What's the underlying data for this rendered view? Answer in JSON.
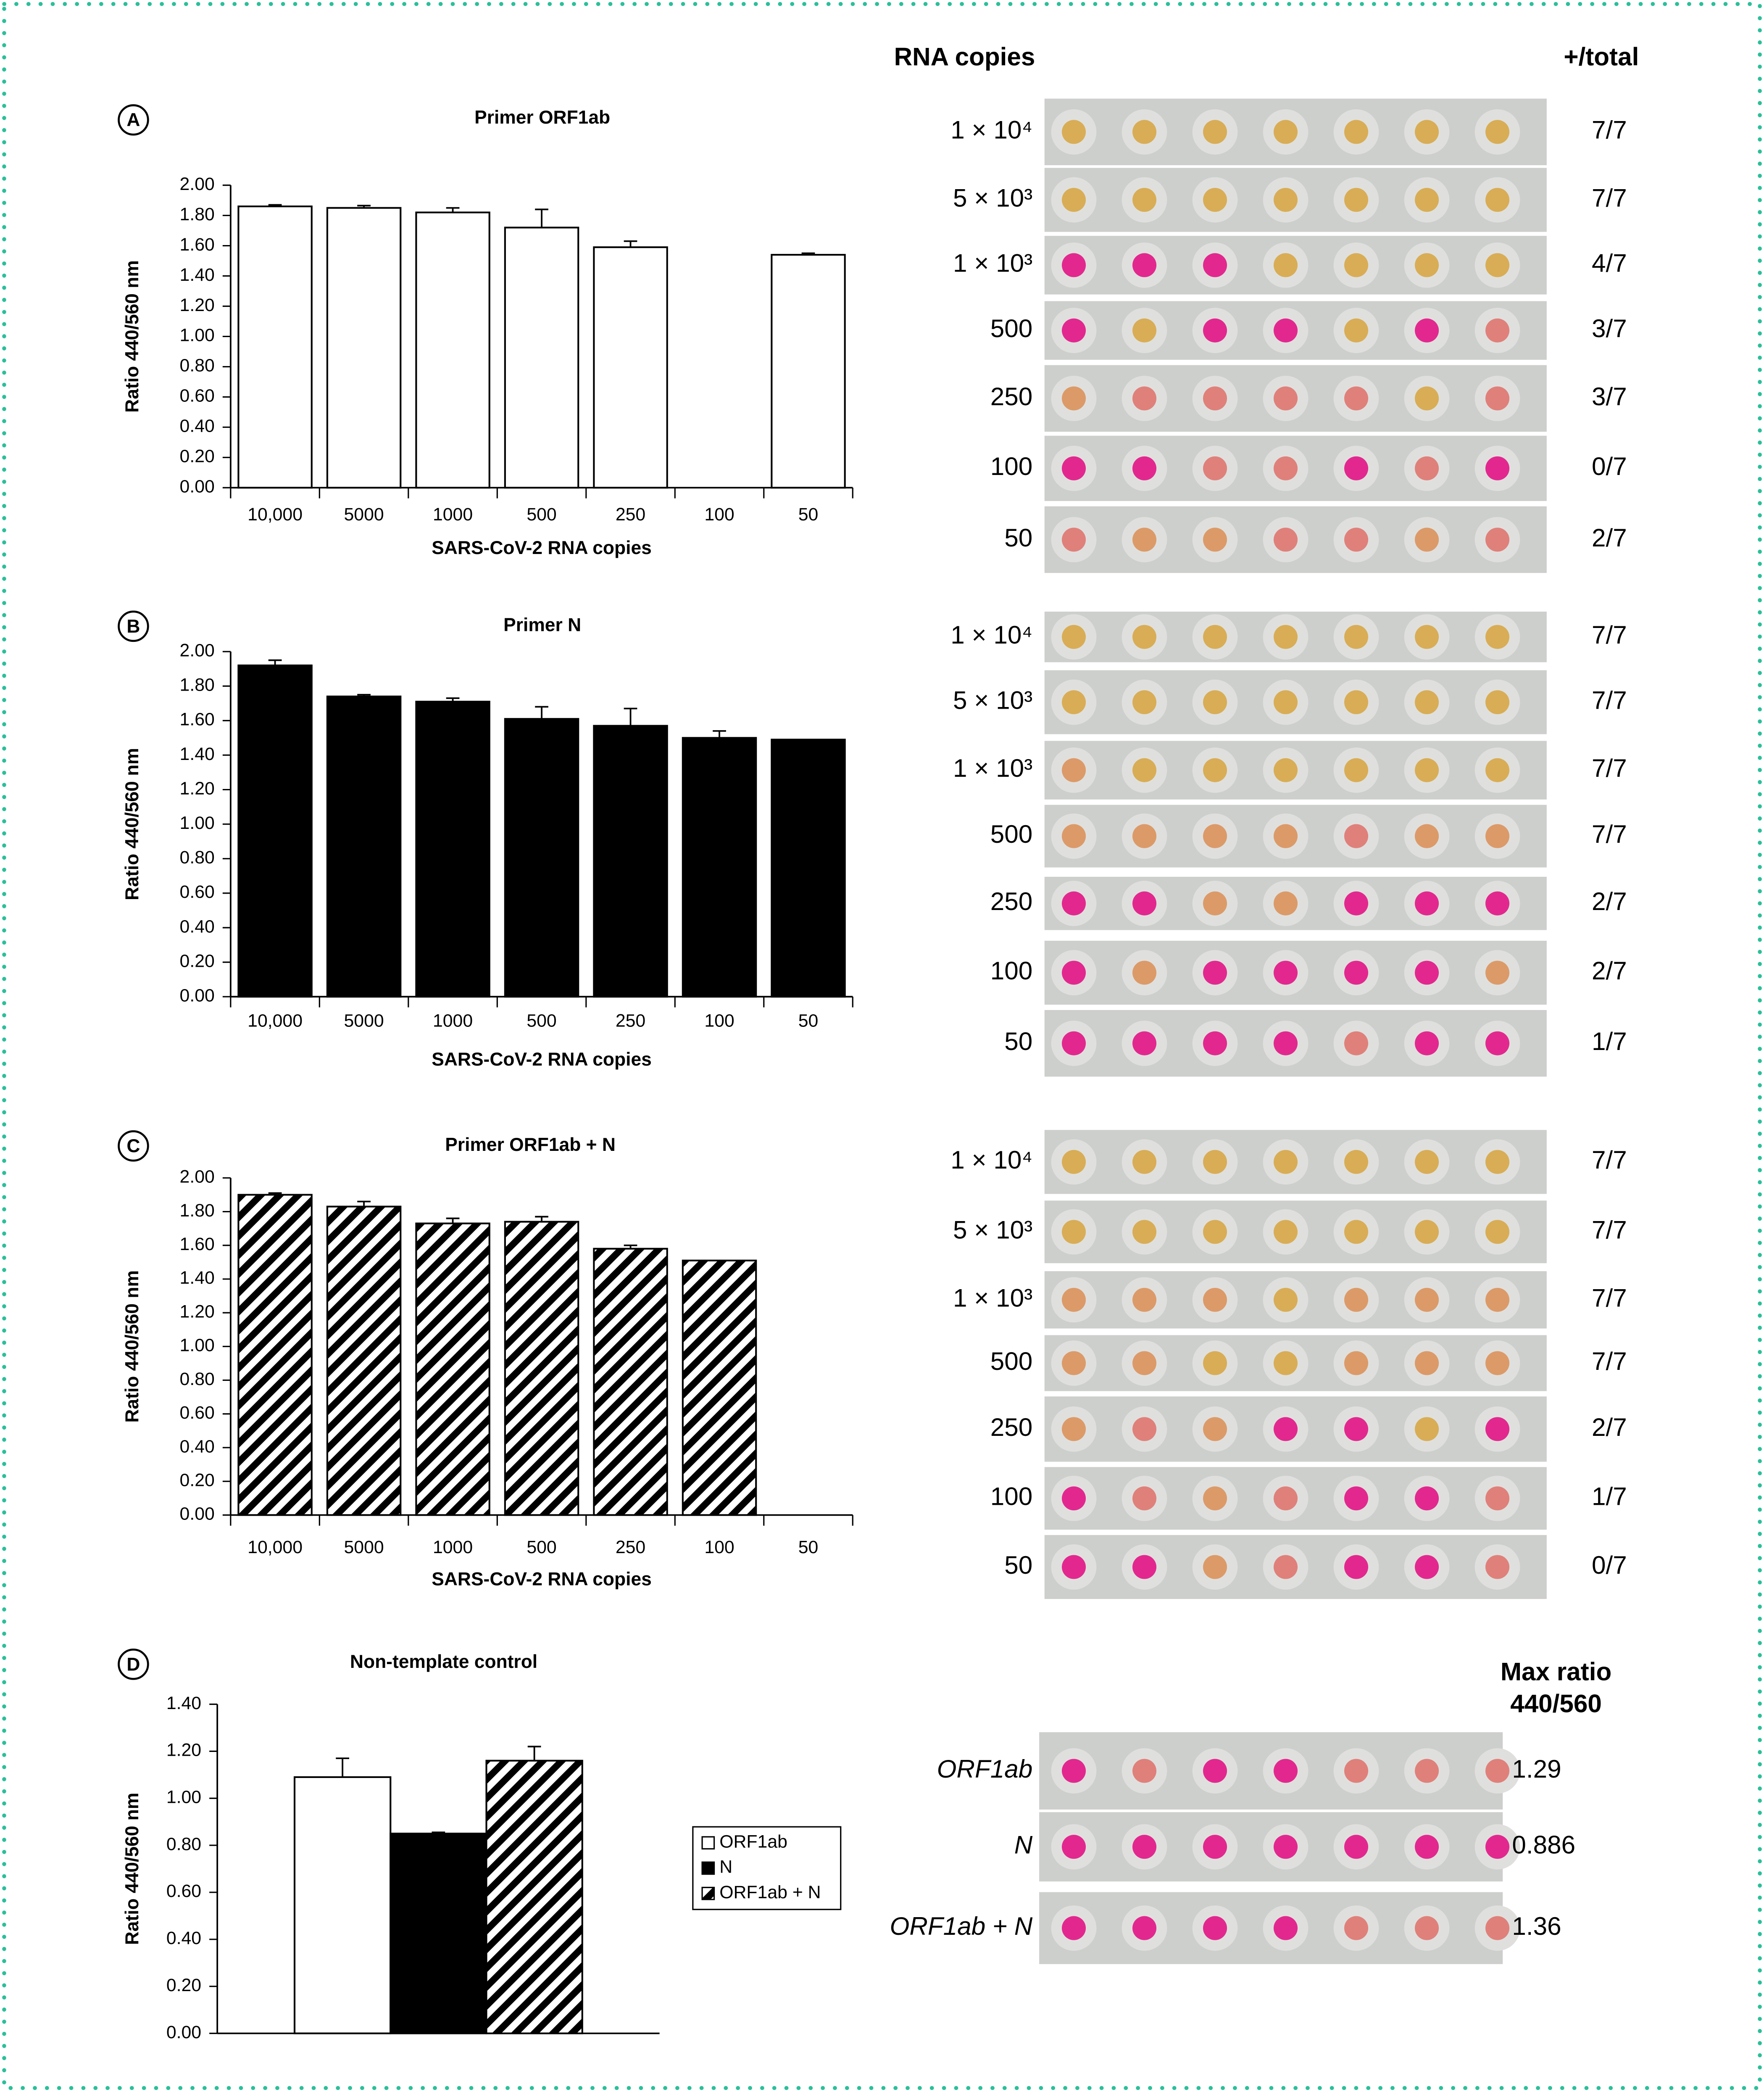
{
  "chart_data": [
    {
      "type": "bar",
      "panel": "A",
      "title": "Primer ORF1ab",
      "x_label": "SARS-CoV-2 RNA copies",
      "y_label": "Ratio 440/560 nm",
      "categories": [
        "10,000",
        "5000",
        "1000",
        "500",
        "250",
        "100",
        "50"
      ],
      "values": [
        1.86,
        1.85,
        1.82,
        1.72,
        1.59,
        null,
        1.54
      ],
      "errors": [
        0.01,
        0.015,
        0.03,
        0.12,
        0.04,
        null,
        0.01
      ],
      "color": "#ffffff",
      "pattern": "solid",
      "ylim": [
        0,
        2
      ],
      "yticks": [
        {
          "value": 0,
          "label": "0.00"
        },
        {
          "value": 0.2,
          "label": "0.20"
        },
        {
          "value": 0.4,
          "label": "0.40"
        },
        {
          "value": 0.6,
          "label": "0.60"
        },
        {
          "value": 0.8,
          "label": "0.80"
        },
        {
          "value": 1,
          "label": "1.00"
        },
        {
          "value": 1.2,
          "label": "1.20"
        },
        {
          "value": 1.4,
          "label": "1.40"
        },
        {
          "value": 1.6,
          "label": "1.60"
        },
        {
          "value": 1.8,
          "label": "1.80"
        },
        {
          "value": 2,
          "label": "2.00"
        }
      ]
    },
    {
      "type": "bar",
      "panel": "B",
      "title": "Primer N",
      "x_label": "SARS-CoV-2 RNA copies",
      "y_label": "Ratio 440/560 nm",
      "categories": [
        "10,000",
        "5000",
        "1000",
        "500",
        "250",
        "100",
        "50"
      ],
      "values": [
        1.92,
        1.74,
        1.71,
        1.61,
        1.57,
        1.5,
        1.49
      ],
      "errors": [
        0.03,
        0.01,
        0.02,
        0.07,
        0.1,
        0.04,
        null
      ],
      "color": "#000000",
      "pattern": "solid",
      "ylim": [
        0,
        2
      ],
      "yticks": [
        {
          "value": 0,
          "label": "0.00"
        },
        {
          "value": 0.2,
          "label": "0.20"
        },
        {
          "value": 0.4,
          "label": "0.40"
        },
        {
          "value": 0.6,
          "label": "0.60"
        },
        {
          "value": 0.8,
          "label": "0.80"
        },
        {
          "value": 1,
          "label": "1.00"
        },
        {
          "value": 1.2,
          "label": "1.20"
        },
        {
          "value": 1.4,
          "label": "1.40"
        },
        {
          "value": 1.6,
          "label": "1.60"
        },
        {
          "value": 1.8,
          "label": "1.80"
        },
        {
          "value": 2,
          "label": "2.00"
        }
      ]
    },
    {
      "type": "bar",
      "panel": "C",
      "title": "Primer ORF1ab + N",
      "x_label": "SARS-CoV-2 RNA copies",
      "y_label": "Ratio 440/560 nm",
      "categories": [
        "10,000",
        "5000",
        "1000",
        "500",
        "250",
        "100",
        "50"
      ],
      "values": [
        1.9,
        1.83,
        1.73,
        1.74,
        1.58,
        1.51,
        null
      ],
      "errors": [
        0.01,
        0.03,
        0.03,
        0.03,
        0.02,
        null,
        null
      ],
      "color": "#000000",
      "pattern": "hatch",
      "ylim": [
        0,
        2
      ],
      "yticks": [
        {
          "value": 0,
          "label": "0.00"
        },
        {
          "value": 0.2,
          "label": "0.20"
        },
        {
          "value": 0.4,
          "label": "0.40"
        },
        {
          "value": 0.6,
          "label": "0.60"
        },
        {
          "value": 0.8,
          "label": "0.80"
        },
        {
          "value": 1,
          "label": "1.00"
        },
        {
          "value": 1.2,
          "label": "1.20"
        },
        {
          "value": 1.4,
          "label": "1.40"
        },
        {
          "value": 1.6,
          "label": "1.60"
        },
        {
          "value": 1.8,
          "label": "1.80"
        },
        {
          "value": 2,
          "label": "2.00"
        }
      ]
    },
    {
      "type": "bar",
      "panel": "D",
      "title": "Non-template control",
      "y_label": "Ratio 440/560 nm",
      "categories": [
        null
      ],
      "series": [
        {
          "name": "ORF1ab",
          "color": "#ffffff",
          "pattern": "solid",
          "values": [
            1.09
          ],
          "errors": [
            0.08
          ]
        },
        {
          "name": "N",
          "color": "#000000",
          "pattern": "solid",
          "values": [
            0.85
          ],
          "errors": [
            0.005
          ]
        },
        {
          "name": "ORF1ab + N",
          "color": "#000000",
          "pattern": "hatch",
          "values": [
            1.16
          ],
          "errors": [
            0.06
          ]
        }
      ],
      "legend": "right",
      "ylim": [
        0,
        1.4
      ],
      "yticks": [
        {
          "value": 0,
          "label": "0.00"
        },
        {
          "value": 0.2,
          "label": "0.20"
        },
        {
          "value": 0.4,
          "label": "0.40"
        },
        {
          "value": 0.6,
          "label": "0.60"
        },
        {
          "value": 0.8,
          "label": "0.80"
        },
        {
          "value": 1,
          "label": "1.00"
        },
        {
          "value": 1.2,
          "label": "1.20"
        },
        {
          "value": 1.4,
          "label": "1.40"
        }
      ]
    }
  ],
  "plates": {
    "copies_header": "RNA copies",
    "result_header": "+/total",
    "panels": [
      {
        "rows": [
          {
            "copies": "1 × 10⁴",
            "result": "7/7"
          },
          {
            "copies": "5 × 10³",
            "result": "7/7"
          },
          {
            "copies": "1 × 10³",
            "result": "4/7"
          },
          {
            "copies": "500",
            "result": "3/7"
          },
          {
            "copies": "250",
            "result": "3/7"
          },
          {
            "copies": "100",
            "result": "0/7"
          },
          {
            "copies": "50",
            "result": "2/7"
          }
        ]
      },
      {
        "rows": [
          {
            "copies": "1 × 10⁴",
            "result": "7/7"
          },
          {
            "copies": "5 × 10³",
            "result": "7/7"
          },
          {
            "copies": "1 × 10³",
            "result": "7/7"
          },
          {
            "copies": "500",
            "result": "7/7"
          },
          {
            "copies": "250",
            "result": "2/7"
          },
          {
            "copies": "100",
            "result": "2/7"
          },
          {
            "copies": "50",
            "result": "1/7"
          }
        ]
      },
      {
        "rows": [
          {
            "copies": "1 × 10⁴",
            "result": "7/7"
          },
          {
            "copies": "5 × 10³",
            "result": "7/7"
          },
          {
            "copies": "1 × 10³",
            "result": "7/7"
          },
          {
            "copies": "500",
            "result": "7/7"
          },
          {
            "copies": "250",
            "result": "2/7"
          },
          {
            "copies": "100",
            "result": "1/7"
          },
          {
            "copies": "50",
            "result": "0/7"
          }
        ]
      }
    ]
  },
  "control": {
    "header_lines": [
      "Max ratio",
      "440/560"
    ],
    "rows": [
      {
        "primer": "ORF1ab",
        "max_ratio": 1.29
      },
      {
        "primer": "N",
        "max_ratio": 0.886
      },
      {
        "primer": "ORF1ab + N",
        "max_ratio": 1.36
      }
    ]
  }
}
